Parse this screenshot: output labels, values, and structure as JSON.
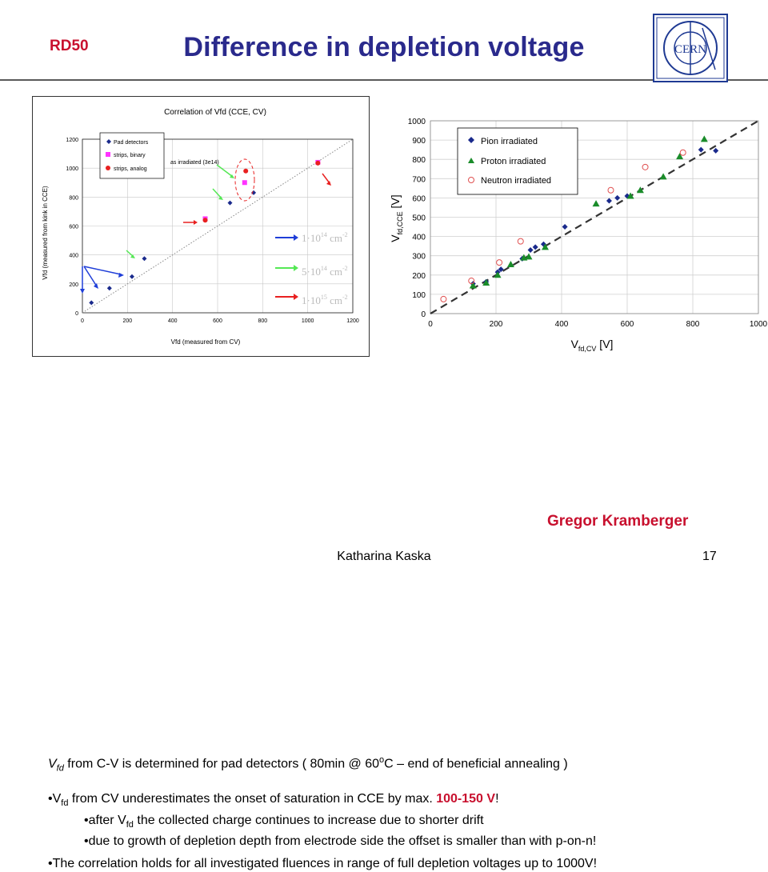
{
  "header": {
    "group": "RD50",
    "title": "Difference in depletion voltage",
    "logo_text": "CERN"
  },
  "left_chart": {
    "title": "Correlation of Vfd (CCE, CV)",
    "xlabel": "Vfd (measured from CV)",
    "ylabel": "Vfd (measured from kink in CCE)",
    "legend": [
      "Pad detectors",
      "strips, binary",
      "strips, analog"
    ],
    "annotation": "as irradiated (3e14)",
    "fluence_keys": [
      {
        "label": "1·10",
        "exp": "14",
        "unit": " cm",
        "uexp": "-2",
        "color": "#1f3ed8"
      },
      {
        "label": "5·10",
        "exp": "14",
        "unit": " cm",
        "uexp": "-2",
        "color": "#55e855"
      },
      {
        "label": "1·10",
        "exp": "15",
        "unit": " cm",
        "uexp": "-2",
        "color": "#e82020"
      }
    ]
  },
  "right_chart": {
    "xlabel_main": "V",
    "xlabel_sub": "fd,CV",
    "xlabel_unit": " [V]",
    "ylabel_main": "V",
    "ylabel_sub": "fd,CCE",
    "ylabel_unit": " [V]",
    "legend": [
      "Pion irradiated",
      "Proton irradiated",
      "Neutron irradiated"
    ]
  },
  "chart_data": [
    {
      "type": "scatter",
      "title": "Correlation of Vfd (CCE, CV)",
      "xlabel": "Vfd (measured from CV)",
      "ylabel": "Vfd (measured from kink in CCE)",
      "xlim": [
        0,
        1200
      ],
      "ylim": [
        0,
        1200
      ],
      "xticks": [
        0,
        200,
        400,
        600,
        800,
        1000,
        1200
      ],
      "yticks": [
        0,
        200,
        400,
        600,
        800,
        1000,
        1200
      ],
      "grid": true,
      "legend_position": "top-left",
      "series": [
        {
          "name": "Pad detectors",
          "color": "#1a2a8c",
          "marker": "diamond",
          "points": [
            [
              40,
              70
            ],
            [
              120,
              170
            ],
            [
              220,
              250
            ],
            [
              275,
              375
            ],
            [
              655,
              760
            ],
            [
              760,
              830
            ]
          ]
        },
        {
          "name": "strips, binary",
          "color": "#ff33ff",
          "marker": "square",
          "points": [
            [
              545,
              650
            ],
            [
              720,
              900
            ],
            [
              1045,
              1040
            ]
          ]
        },
        {
          "name": "strips, analog",
          "color": "#e82020",
          "marker": "circle",
          "points": [
            [
              545,
              640
            ],
            [
              725,
              980
            ],
            [
              1045,
              1035
            ]
          ]
        }
      ]
    },
    {
      "type": "scatter",
      "xlabel": "Vfd,CV [V]",
      "ylabel": "Vfd,CCE [V]",
      "xlim": [
        0,
        1000
      ],
      "ylim": [
        0,
        1000
      ],
      "xticks": [
        0,
        200,
        400,
        600,
        800,
        1000
      ],
      "yticks": [
        0,
        100,
        200,
        300,
        400,
        500,
        600,
        700,
        800,
        900,
        1000
      ],
      "grid": true,
      "legend_position": "top-left",
      "series": [
        {
          "name": "Pion irradiated",
          "color": "#1a2a8c",
          "marker": "diamond",
          "points": [
            [
              130,
              155
            ],
            [
              170,
              165
            ],
            [
              205,
              215
            ],
            [
              215,
              230
            ],
            [
              280,
              285
            ],
            [
              305,
              330
            ],
            [
              320,
              345
            ],
            [
              345,
              360
            ],
            [
              410,
              450
            ],
            [
              545,
              585
            ],
            [
              570,
              600
            ],
            [
              600,
              610
            ],
            [
              825,
              850
            ],
            [
              870,
              845
            ]
          ]
        },
        {
          "name": "Proton irradiated",
          "color": "#1a8c2a",
          "marker": "triangle",
          "points": [
            [
              130,
              145
            ],
            [
              170,
              160
            ],
            [
              205,
              200
            ],
            [
              245,
              255
            ],
            [
              285,
              290
            ],
            [
              300,
              295
            ],
            [
              350,
              345
            ],
            [
              505,
              570
            ],
            [
              610,
              610
            ],
            [
              640,
              640
            ],
            [
              710,
              710
            ],
            [
              760,
              815
            ],
            [
              835,
              905
            ]
          ]
        },
        {
          "name": "Neutron irradiated",
          "color": "#e05050",
          "marker": "open-circle",
          "points": [
            [
              40,
              75
            ],
            [
              125,
              170
            ],
            [
              210,
              265
            ],
            [
              275,
              375
            ],
            [
              550,
              640
            ],
            [
              655,
              760
            ],
            [
              770,
              835
            ]
          ]
        }
      ]
    }
  ],
  "notes": {
    "line1_a": "V",
    "line1_sub": "fd",
    "line1_b": "  from C-V is determined for pad detectors ( 80min @ 60",
    "line1_sup": "o",
    "line1_c": "C – end of beneficial annealing )",
    "bullet1_a": "•V",
    "bullet1_sub": "fd",
    "bullet1_b": " from CV underestimates the onset of saturation in CCE by max. ",
    "bullet1_hl": "100-150 V",
    "bullet1_c": "!",
    "bullet2_a": "•after V",
    "bullet2_sub": "fd",
    "bullet2_b": " the collected charge continues to increase due to shorter drift",
    "bullet3": "•due to growth of depletion depth from electrode side the offset is smaller than with p-on-n!",
    "bullet4": "•The correlation holds for all investigated fluences in range of full depletion voltages up to 1000V!"
  },
  "footer": {
    "author": "Gregor Kramberger",
    "presenter": "Katharina Kaska",
    "page": "17"
  }
}
